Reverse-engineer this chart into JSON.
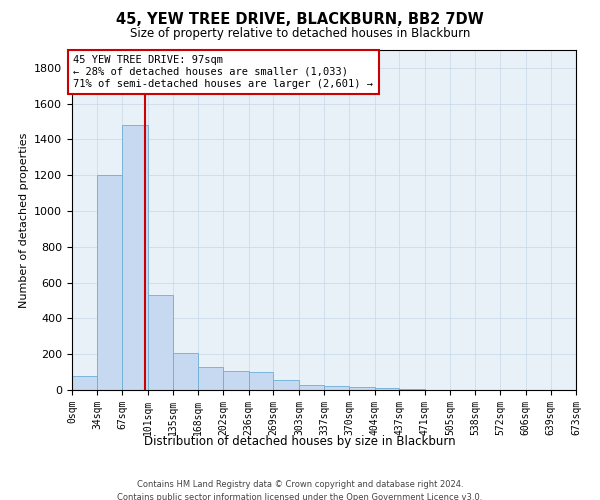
{
  "title": "45, YEW TREE DRIVE, BLACKBURN, BB2 7DW",
  "subtitle": "Size of property relative to detached houses in Blackburn",
  "xlabel": "Distribution of detached houses by size in Blackburn",
  "ylabel": "Number of detached properties",
  "footer_line1": "Contains HM Land Registry data © Crown copyright and database right 2024.",
  "footer_line2": "Contains public sector information licensed under the Open Government Licence v3.0.",
  "bin_edges": [
    0,
    34,
    67,
    101,
    135,
    168,
    202,
    236,
    269,
    303,
    337,
    370,
    404,
    437,
    471,
    505,
    538,
    572,
    606,
    639,
    673
  ],
  "bin_labels": [
    "0sqm",
    "34sqm",
    "67sqm",
    "101sqm",
    "135sqm",
    "168sqm",
    "202sqm",
    "236sqm",
    "269sqm",
    "303sqm",
    "337sqm",
    "370sqm",
    "404sqm",
    "437sqm",
    "471sqm",
    "505sqm",
    "538sqm",
    "572sqm",
    "606sqm",
    "639sqm",
    "673sqm"
  ],
  "bar_heights": [
    80,
    1200,
    1480,
    530,
    205,
    130,
    105,
    100,
    55,
    30,
    20,
    15,
    10,
    5,
    0,
    0,
    0,
    0,
    0,
    0
  ],
  "bar_color": "#c6d9f0",
  "bar_edge_color": "#6baed6",
  "property_sqm": 97,
  "property_line_color": "#cc0000",
  "annotation_line1": "45 YEW TREE DRIVE: 97sqm",
  "annotation_line2": "← 28% of detached houses are smaller (1,033)",
  "annotation_line3": "71% of semi-detached houses are larger (2,601) →",
  "annotation_box_color": "#cc0000",
  "ylim": [
    0,
    1900
  ],
  "yticks": [
    0,
    200,
    400,
    600,
    800,
    1000,
    1200,
    1400,
    1600,
    1800
  ],
  "background_color": "#ffffff",
  "grid_color": "#c8d8e8",
  "plot_bg_color": "#e8f0f8"
}
